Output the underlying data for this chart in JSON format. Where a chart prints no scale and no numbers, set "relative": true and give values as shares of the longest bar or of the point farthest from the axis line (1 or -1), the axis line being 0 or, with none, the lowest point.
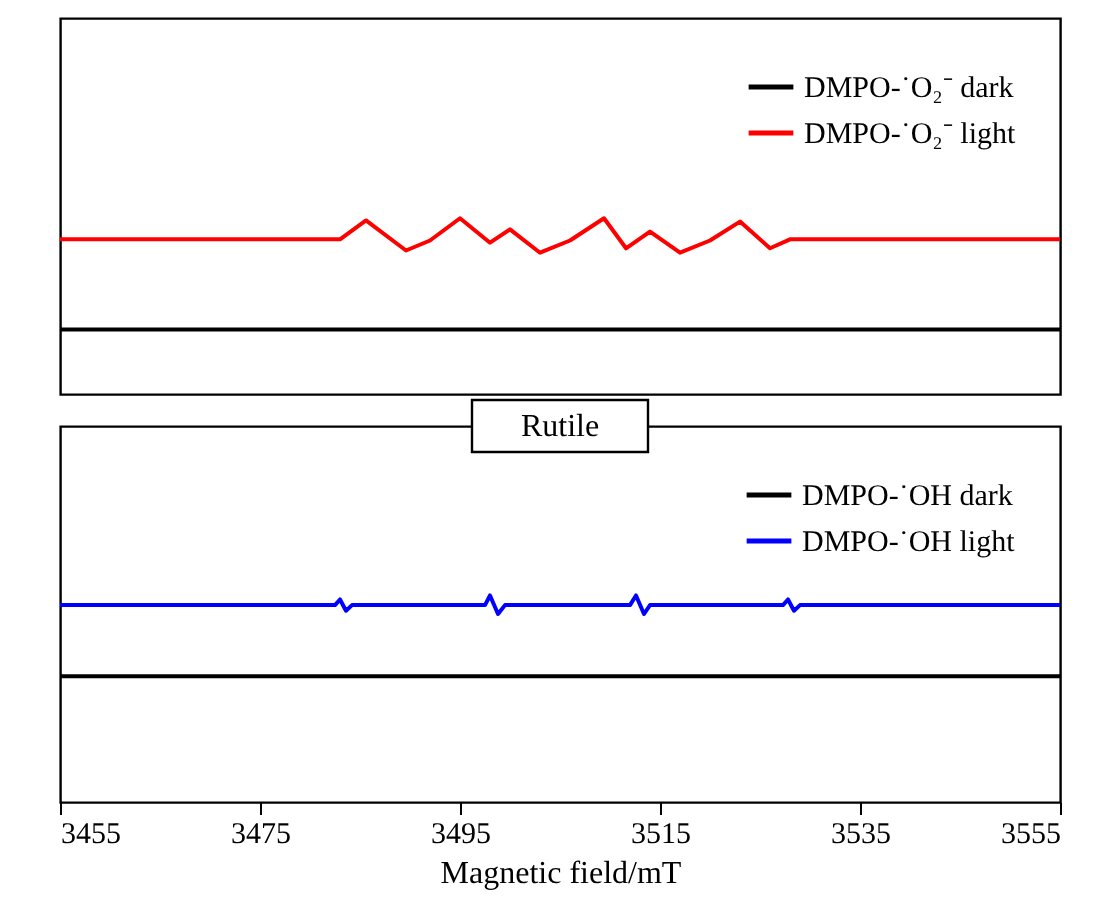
{
  "chart_data": [
    {
      "type": "line",
      "relative": true,
      "xlim": [
        3455,
        3555
      ],
      "xticks": [
        3455,
        3475,
        3495,
        3515,
        3535,
        3555
      ],
      "tick_labels": false,
      "legend": "top right",
      "grid": false,
      "marker": "none",
      "line_style": "solid",
      "series": [
        {
          "name": "DMPO-˙O₂⁻ dark",
          "color": "#000000",
          "x": [
            3455,
            3555
          ],
          "values": [
            0,
            0
          ]
        },
        {
          "name": "DMPO-˙O₂⁻ light",
          "color": "#ff0000",
          "x": [
            3455,
            3483,
            3485.6,
            3489.6,
            3492,
            3495,
            3498,
            3500,
            3503,
            3506,
            3509.4,
            3511.6,
            3514,
            3517,
            3520,
            3523,
            3526,
            3528,
            3555
          ],
          "values": [
            0.81,
            0.81,
            0.98,
            0.71,
            0.8,
            1.0,
            0.78,
            0.9,
            0.69,
            0.8,
            1.0,
            0.73,
            0.88,
            0.69,
            0.8,
            0.97,
            0.73,
            0.81,
            0.81
          ]
        }
      ]
    },
    {
      "type": "line",
      "relative": true,
      "xlim": [
        3455,
        3555
      ],
      "xticks": [
        3455,
        3475,
        3495,
        3515,
        3535,
        3555
      ],
      "xlabel": "Magnetic field/mT",
      "tick_labels": "x",
      "legend": "top right",
      "grid": false,
      "marker": "none",
      "line_style": "solid",
      "annotations": [
        "Rutile"
      ],
      "series": [
        {
          "name": "DMPO-˙OH dark",
          "color": "#000000",
          "x": [
            3455,
            3555
          ],
          "values": [
            0,
            0
          ]
        },
        {
          "name": "DMPO-˙OH light",
          "color": "#0000ff",
          "x": [
            3455,
            3482.5,
            3483,
            3483.6,
            3484.2,
            3497.5,
            3498,
            3498.8,
            3499.5,
            3512,
            3512.6,
            3513.4,
            3514,
            3527.3,
            3527.8,
            3528.4,
            3529,
            3555
          ],
          "values": [
            0.88,
            0.88,
            0.95,
            0.81,
            0.88,
            0.88,
            1.0,
            0.77,
            0.88,
            0.88,
            1.0,
            0.77,
            0.88,
            0.88,
            0.95,
            0.81,
            0.88,
            0.88
          ]
        }
      ]
    }
  ]
}
